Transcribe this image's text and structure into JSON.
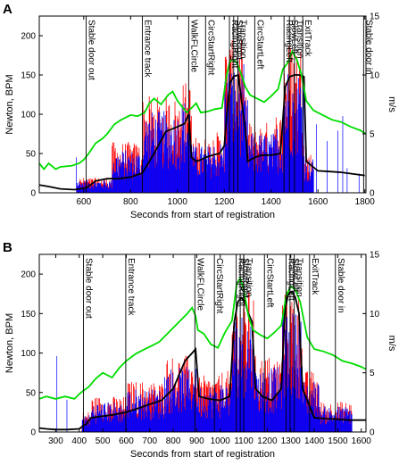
{
  "colors": {
    "force": "#0000ff",
    "force2": "#ff0000",
    "heart": "#000000",
    "speed": "#00dd00"
  },
  "chart_data": [
    {
      "type": "line",
      "panel": "A",
      "xlabel": "Seconds from start of registration",
      "ylabel": "Newton, BPM",
      "y2label": "m/s",
      "xlim": [
        410,
        1805
      ],
      "ylim": [
        0,
        225
      ],
      "y2lim": [
        0,
        15
      ],
      "xticks": [
        600,
        800,
        1000,
        1200,
        1400,
        1600,
        1800
      ],
      "yticks": [
        0,
        50,
        100,
        150,
        200
      ],
      "y2ticks": [
        0,
        5,
        10,
        15
      ],
      "events": [
        {
          "label": "Stable door out",
          "x": 610
        },
        {
          "label": "Entrance track",
          "x": 850
        },
        {
          "label": "WalkFLCircle",
          "x": 1048
        },
        {
          "label": "CircStartRight",
          "x": 1120
        },
        {
          "label": "RacingRight",
          "x": 1222
        },
        {
          "label": "SlowRight",
          "x": 1240
        },
        {
          "label": "Transition",
          "x": 1258
        },
        {
          "label": "CircStartLeft",
          "x": 1330
        },
        {
          "label": "RacingLeft",
          "x": 1455
        },
        {
          "label": "SlowLeft",
          "x": 1478
        },
        {
          "label": "Transition",
          "x": 1500
        },
        {
          "label": "ExitTrack",
          "x": 1535
        },
        {
          "label": "Stable door in",
          "x": 1795
        }
      ],
      "heart_rate": {
        "x": [
          410,
          450,
          500,
          560,
          610,
          650,
          700,
          750,
          800,
          850,
          900,
          950,
          1000,
          1030,
          1048,
          1060,
          1080,
          1100,
          1120,
          1150,
          1180,
          1200,
          1215,
          1225,
          1240,
          1260,
          1275,
          1290,
          1300,
          1330,
          1360,
          1400,
          1440,
          1460,
          1480,
          1500,
          1520,
          1540,
          1550,
          1600,
          1650,
          1700,
          1750,
          1800
        ],
        "y": [
          10,
          8,
          5,
          4,
          6,
          15,
          18,
          18,
          20,
          25,
          50,
          78,
          84,
          88,
          100,
          45,
          40,
          42,
          45,
          48,
          50,
          60,
          115,
          140,
          148,
          150,
          115,
          80,
          40,
          45,
          48,
          48,
          50,
          135,
          148,
          150,
          150,
          148,
          40,
          28,
          27,
          26,
          24,
          22
        ]
      },
      "speed": {
        "x": [
          410,
          430,
          450,
          480,
          500,
          550,
          580,
          600,
          620,
          650,
          680,
          700,
          730,
          760,
          800,
          830,
          860,
          880,
          900,
          930,
          960,
          980,
          1000,
          1020,
          1040,
          1060,
          1080,
          1100,
          1130,
          1160,
          1190,
          1210,
          1225,
          1240,
          1255,
          1270,
          1290,
          1310,
          1340,
          1370,
          1400,
          1430,
          1450,
          1470,
          1490,
          1510,
          1530,
          1550,
          1580,
          1620,
          1660,
          1700,
          1740,
          1780,
          1805
        ],
        "y": [
          2.5,
          2.0,
          2.5,
          2.0,
          2.2,
          2.3,
          2.5,
          2.8,
          3.3,
          4.2,
          4.6,
          5.0,
          5.8,
          6.2,
          6.6,
          6.5,
          6.8,
          7.6,
          8.0,
          7.5,
          8.3,
          8.6,
          7.8,
          7.3,
          6.8,
          7.2,
          7.6,
          6.8,
          6.9,
          7.1,
          7.2,
          10.0,
          11.2,
          11.3,
          11.0,
          10.2,
          9.0,
          8.3,
          8.0,
          7.7,
          8.2,
          8.8,
          10.5,
          11.0,
          12.0,
          11.3,
          10.0,
          7.8,
          7.0,
          6.6,
          6.2,
          6.0,
          5.6,
          5.3,
          5.0
        ]
      },
      "active_segments": [
        [
          570,
          720,
          15
        ],
        [
          720,
          850,
          50
        ],
        [
          850,
          1010,
          95
        ],
        [
          1010,
          1060,
          110
        ],
        [
          1060,
          1140,
          55
        ],
        [
          1140,
          1200,
          60
        ],
        [
          1200,
          1282,
          150
        ],
        [
          1282,
          1300,
          110
        ],
        [
          1300,
          1420,
          70
        ],
        [
          1420,
          1450,
          80
        ],
        [
          1450,
          1540,
          150
        ],
        [
          1540,
          1580,
          40
        ]
      ]
    },
    {
      "type": "line",
      "panel": "B",
      "xlabel": "Seconds from start of registration",
      "ylabel": "Newton, BPM",
      "y2label": "m/s",
      "xlim": [
        230,
        1620
      ],
      "ylim": [
        0,
        225
      ],
      "y2lim": [
        0,
        15
      ],
      "xticks": [
        300,
        400,
        500,
        600,
        700,
        800,
        900,
        1000,
        1100,
        1200,
        1300,
        1400,
        1500,
        1600
      ],
      "yticks": [
        0,
        50,
        100,
        150,
        200
      ],
      "y2ticks": [
        0,
        5,
        10,
        15
      ],
      "events": [
        {
          "label": "Stable door out",
          "x": 418
        },
        {
          "label": "Entrance track",
          "x": 598
        },
        {
          "label": "WalkFLCircle",
          "x": 892
        },
        {
          "label": "CircStartRight",
          "x": 975
        },
        {
          "label": "RacingRight",
          "x": 1068
        },
        {
          "label": "SlowRight",
          "x": 1085
        },
        {
          "label": "Transition",
          "x": 1100
        },
        {
          "label": "CircStartLeft",
          "x": 1188
        },
        {
          "label": "RacingLeft",
          "x": 1280
        },
        {
          "label": "SlowLeft",
          "x": 1297
        },
        {
          "label": "Transition",
          "x": 1315
        },
        {
          "label": "ExitTrack",
          "x": 1380
        },
        {
          "label": "Stable door in",
          "x": 1490
        }
      ],
      "heart_rate": {
        "x": [
          230,
          260,
          300,
          350,
          400,
          418,
          430,
          450,
          500,
          550,
          600,
          650,
          700,
          750,
          800,
          850,
          880,
          895,
          910,
          950,
          1000,
          1040,
          1060,
          1075,
          1090,
          1105,
          1120,
          1135,
          1150,
          1180,
          1220,
          1260,
          1275,
          1290,
          1305,
          1320,
          1335,
          1350,
          1400,
          1450,
          1500,
          1550,
          1600,
          1620
        ],
        "y": [
          5,
          4,
          3,
          3,
          4,
          8,
          10,
          18,
          20,
          22,
          25,
          30,
          35,
          40,
          55,
          90,
          100,
          105,
          45,
          42,
          40,
          45,
          140,
          165,
          170,
          165,
          150,
          140,
          55,
          45,
          40,
          55,
          155,
          175,
          178,
          170,
          150,
          55,
          18,
          17,
          16,
          15,
          15,
          15
        ]
      },
      "speed": {
        "x": [
          230,
          260,
          300,
          340,
          380,
          400,
          418,
          440,
          470,
          500,
          540,
          570,
          600,
          640,
          680,
          710,
          740,
          780,
          820,
          860,
          880,
          895,
          905,
          930,
          960,
          990,
          1020,
          1050,
          1070,
          1085,
          1100,
          1120,
          1140,
          1170,
          1200,
          1230,
          1260,
          1280,
          1300,
          1320,
          1340,
          1370,
          1400,
          1440,
          1480,
          1520,
          1560,
          1600,
          1620
        ],
        "y": [
          2.8,
          3.0,
          2.8,
          3.0,
          2.8,
          3.2,
          3.5,
          3.8,
          4.5,
          5.0,
          4.6,
          5.4,
          6.0,
          6.6,
          7.0,
          7.3,
          7.6,
          8.4,
          9.2,
          10.0,
          10.5,
          9.8,
          8.6,
          8.3,
          7.4,
          7.1,
          8.4,
          9.4,
          12.5,
          13.0,
          12.0,
          9.8,
          8.6,
          8.2,
          7.9,
          8.4,
          9.0,
          11.5,
          12.3,
          12.0,
          11.0,
          8.0,
          7.0,
          6.8,
          6.5,
          6.0,
          5.8,
          5.5,
          5.3
        ]
      },
      "active_segments": [
        [
          410,
          450,
          20
        ],
        [
          450,
          600,
          35
        ],
        [
          600,
          760,
          50
        ],
        [
          760,
          900,
          75
        ],
        [
          900,
          1000,
          55
        ],
        [
          1000,
          1050,
          60
        ],
        [
          1050,
          1145,
          140
        ],
        [
          1145,
          1260,
          75
        ],
        [
          1260,
          1350,
          140
        ],
        [
          1350,
          1420,
          60
        ],
        [
          1420,
          1560,
          30
        ]
      ]
    }
  ]
}
